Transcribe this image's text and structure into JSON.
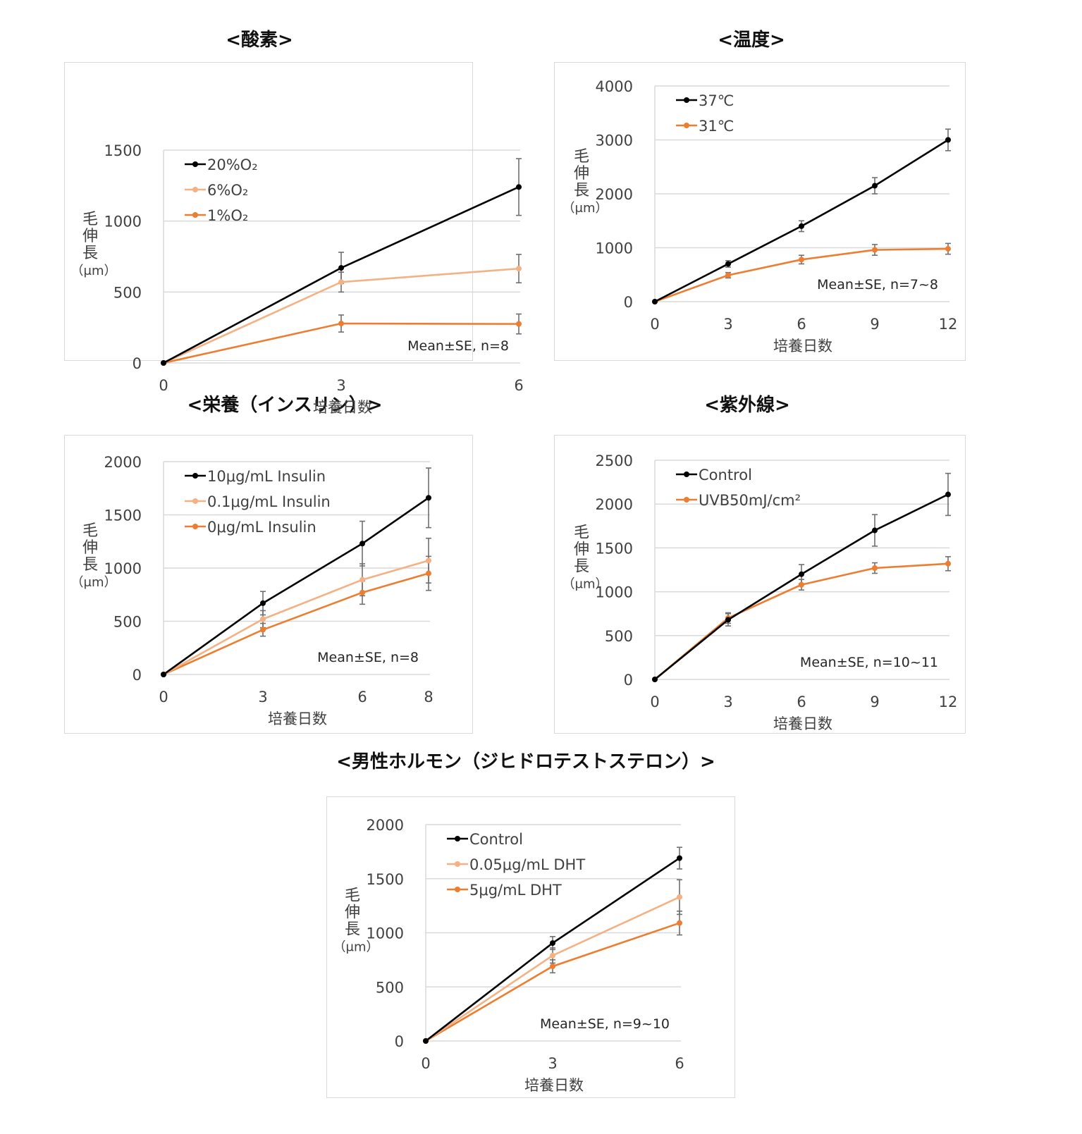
{
  "headings": {
    "oxygen": "<酸素>",
    "temperature": "<温度>",
    "nutrition": "<栄養（インスリン）>",
    "uv": "<紫外線>",
    "androgen": "<男性ホルモン（ジヒドロテストステロン）>"
  },
  "colors": {
    "black": "#000000",
    "light_orange": "#f4b183",
    "orange": "#ed7d31",
    "grid": "#d9d9d9",
    "error_bar": "#707070"
  },
  "chart_data": [
    {
      "id": "oxygen",
      "type": "line",
      "title": "<酸素>",
      "xlabel": "培養日数",
      "ylabel": [
        "毛",
        "伸",
        "長",
        "（μm）"
      ],
      "x": [
        0,
        3,
        6
      ],
      "xticks": [
        "0",
        "3",
        "6"
      ],
      "ylim": [
        0,
        1500
      ],
      "yticks": [
        0,
        500,
        1000,
        1500
      ],
      "note": "Mean±SE, n=8",
      "legend_position": "top-left",
      "series": [
        {
          "name": "20%O₂",
          "color": "#000000",
          "values": [
            0,
            670,
            1240
          ],
          "errors": [
            0,
            110,
            200
          ]
        },
        {
          "name": "6%O₂",
          "color": "#f4b183",
          "values": [
            0,
            570,
            665
          ],
          "errors": [
            0,
            70,
            100
          ]
        },
        {
          "name": "1%O₂",
          "color": "#ed7d31",
          "values": [
            0,
            278,
            275
          ],
          "errors": [
            0,
            60,
            70
          ]
        }
      ]
    },
    {
      "id": "temperature",
      "type": "line",
      "title": "<温度>",
      "xlabel": "培養日数",
      "ylabel": [
        "毛",
        "伸",
        "長",
        "（μm）"
      ],
      "x": [
        0,
        3,
        6,
        9,
        12
      ],
      "xticks": [
        "0",
        "3",
        "6",
        "9",
        "12"
      ],
      "ylim": [
        0,
        4000
      ],
      "yticks": [
        0,
        1000,
        2000,
        3000,
        4000
      ],
      "note": "Mean±SE, n=7~8",
      "legend_position": "top-left",
      "series": [
        {
          "name": "37℃",
          "color": "#000000",
          "values": [
            0,
            700,
            1400,
            2150,
            3000
          ],
          "errors": [
            0,
            60,
            100,
            150,
            200
          ]
        },
        {
          "name": "31℃",
          "color": "#ed7d31",
          "values": [
            0,
            490,
            780,
            960,
            980
          ],
          "errors": [
            0,
            50,
            80,
            100,
            100
          ]
        }
      ]
    },
    {
      "id": "nutrition",
      "type": "line",
      "title": "<栄養（インスリン）>",
      "xlabel": "培養日数",
      "ylabel": [
        "毛",
        "伸",
        "長",
        "（μm）"
      ],
      "x": [
        0,
        3,
        6,
        8
      ],
      "xticks": [
        "0",
        "3",
        "6",
        "8"
      ],
      "ylim": [
        0,
        2000
      ],
      "yticks": [
        0,
        500,
        1000,
        1500,
        2000
      ],
      "note": "Mean±SE, n=8",
      "legend_position": "top-left",
      "series": [
        {
          "name": "10μg/mL Insulin",
          "color": "#000000",
          "values": [
            0,
            670,
            1230,
            1660
          ],
          "errors": [
            0,
            110,
            210,
            280
          ]
        },
        {
          "name": "0.1μg/mL Insulin",
          "color": "#f4b183",
          "values": [
            0,
            520,
            890,
            1070
          ],
          "errors": [
            0,
            80,
            150,
            210
          ]
        },
        {
          "name": "0μg/mL Insulin",
          "color": "#ed7d31",
          "values": [
            0,
            420,
            770,
            950
          ],
          "errors": [
            0,
            60,
            110,
            160
          ]
        }
      ]
    },
    {
      "id": "uv",
      "type": "line",
      "title": "<紫外線>",
      "xlabel": "培養日数",
      "ylabel": [
        "毛",
        "伸",
        "長",
        "（μm）"
      ],
      "x": [
        0,
        3,
        6,
        9,
        12
      ],
      "xticks": [
        "0",
        "3",
        "6",
        "9",
        "12"
      ],
      "ylim": [
        0,
        2500
      ],
      "yticks": [
        0,
        500,
        1000,
        1500,
        2000,
        2500
      ],
      "note": "Mean±SE, n=10~11",
      "legend_position": "top-left",
      "series": [
        {
          "name": "Control",
          "color": "#000000",
          "values": [
            0,
            680,
            1200,
            1700,
            2110
          ],
          "errors": [
            0,
            70,
            110,
            180,
            240
          ]
        },
        {
          "name": "UVB50mJ/cm²",
          "color": "#ed7d31",
          "values": [
            0,
            700,
            1080,
            1270,
            1320
          ],
          "errors": [
            0,
            60,
            60,
            60,
            80
          ]
        }
      ]
    },
    {
      "id": "androgen",
      "type": "line",
      "title": "<男性ホルモン（ジヒドロテストステロン）>",
      "xlabel": "培養日数",
      "ylabel": [
        "毛",
        "伸",
        "長",
        "（μm）"
      ],
      "x": [
        0,
        3,
        6
      ],
      "xticks": [
        "0",
        "3",
        "6"
      ],
      "ylim": [
        0,
        2000
      ],
      "yticks": [
        0,
        500,
        1000,
        1500,
        2000
      ],
      "note": "Mean±SE, n=9~10",
      "legend_position": "top-left",
      "series": [
        {
          "name": "Control",
          "color": "#000000",
          "values": [
            0,
            905,
            1690
          ],
          "errors": [
            0,
            60,
            100
          ]
        },
        {
          "name": "0.05μg/mL DHT",
          "color": "#f4b183",
          "values": [
            0,
            790,
            1330
          ],
          "errors": [
            0,
            70,
            160
          ]
        },
        {
          "name": "5μg/mL DHT",
          "color": "#ed7d31",
          "values": [
            0,
            690,
            1090
          ],
          "errors": [
            0,
            60,
            110
          ]
        }
      ]
    }
  ]
}
